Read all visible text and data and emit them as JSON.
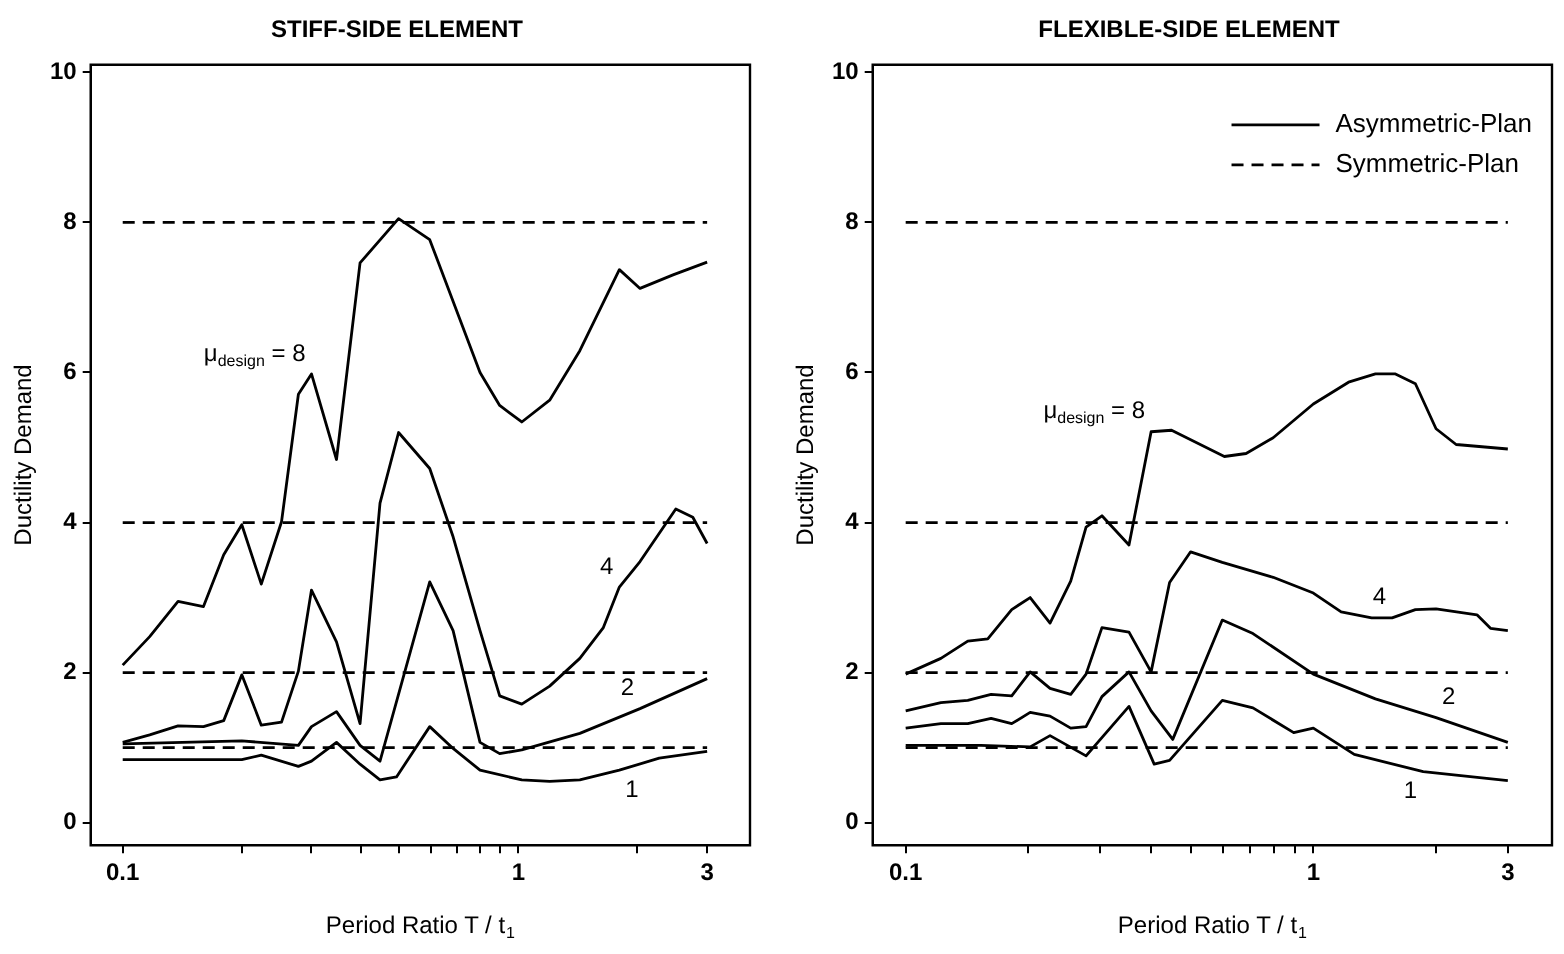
{
  "chart_data": [
    {
      "type": "line",
      "title": "STIFF-SIDE ELEMENT",
      "xlabel": "Period Ratio T / t$_{1}$",
      "ylabel": "Ductility Demand",
      "log": "x",
      "grid": false,
      "marker": "none",
      "xlim": [
        0.083,
        3.85
      ],
      "ylim": [
        -0.3,
        10.1
      ],
      "xticks": [
        0.1,
        {
          "value": 0.2,
          "label": null
        },
        {
          "value": 0.3,
          "label": null
        },
        {
          "value": 0.4,
          "label": null
        },
        {
          "value": 0.5,
          "label": null
        },
        {
          "value": 0.6,
          "label": null
        },
        {
          "value": 0.7,
          "label": null
        },
        {
          "value": 0.8,
          "label": null
        },
        {
          "value": 0.9,
          "label": null
        },
        1,
        {
          "value": 2,
          "label": null
        },
        3
      ],
      "yticks": [
        0,
        2,
        4,
        6,
        8,
        10
      ],
      "annotations": [
        {
          "text": "μ$_{design}$ = 8",
          "x": 0.3,
          "y": 5.98
        },
        {
          "text": "4",
          "x": 1.8,
          "y": 3.14
        },
        {
          "text": "2",
          "x": 2.03,
          "y": 1.52
        },
        {
          "text": "1",
          "x": 1.8,
          "y": 0.7
        }
      ],
      "series": [
        {
          "type": "line",
          "color": "#000000",
          "line_style": "solid",
          "x": [
            0.1,
            0.117,
            0.138,
            0.16,
            0.18,
            0.2,
            0.224,
            0.252,
            0.278,
            0.3,
            0.347,
            0.398,
            0.498,
            0.597,
            0.8,
            0.897,
            1.02,
            1.2,
            1.43,
            1.8,
            2.03,
            2.46,
            3.0
          ],
          "values": [
            2.1,
            2.48,
            2.95,
            2.88,
            3.57,
            3.97,
            3.18,
            4.01,
            5.71,
            5.98,
            4.84,
            7.46,
            8.05,
            7.77,
            6.0,
            5.56,
            5.34,
            5.63,
            6.29,
            7.37,
            7.12,
            7.3,
            7.47
          ]
        },
        {
          "type": "line",
          "color": "#000000",
          "line_style": "solid",
          "x": [
            0.1,
            0.117,
            0.138,
            0.16,
            0.18,
            0.2,
            0.224,
            0.252,
            0.278,
            0.3,
            0.347,
            0.398,
            0.447,
            0.498,
            0.597,
            0.684,
            0.8,
            0.897,
            1.02,
            1.2,
            1.43,
            1.64,
            1.8,
            2.03,
            2.5,
            2.76,
            3.0
          ],
          "values": [
            1.07,
            1.17,
            1.29,
            1.28,
            1.36,
            1.97,
            1.3,
            1.34,
            2.02,
            3.1,
            2.41,
            1.32,
            4.26,
            5.2,
            4.72,
            3.81,
            2.56,
            1.69,
            1.58,
            1.82,
            2.19,
            2.6,
            3.14,
            3.48,
            4.18,
            4.07,
            3.72
          ]
        },
        {
          "type": "line",
          "color": "#000000",
          "line_style": "solid",
          "x": [
            0.1,
            0.2,
            0.278,
            0.3,
            0.347,
            0.398,
            0.447,
            0.597,
            0.684,
            0.8,
            0.897,
            1.02,
            1.43,
            2.03,
            3.0
          ],
          "values": [
            1.05,
            1.09,
            1.03,
            1.28,
            1.48,
            1.03,
            0.82,
            3.21,
            2.56,
            1.07,
            0.92,
            0.97,
            1.19,
            1.52,
            1.92
          ]
        },
        {
          "type": "line",
          "color": "#000000",
          "line_style": "solid",
          "x": [
            0.1,
            0.2,
            0.224,
            0.278,
            0.3,
            0.347,
            0.398,
            0.447,
            0.492,
            0.597,
            0.684,
            0.8,
            1.02,
            1.2,
            1.43,
            1.8,
            2.27,
            3.0
          ],
          "values": [
            0.84,
            0.84,
            0.9,
            0.75,
            0.82,
            1.07,
            0.78,
            0.57,
            0.61,
            1.28,
            0.99,
            0.7,
            0.57,
            0.55,
            0.57,
            0.7,
            0.86,
            0.95
          ]
        },
        {
          "type": "line",
          "color": "#000000",
          "line_style": "dashed",
          "x": [
            0.1,
            3.0
          ],
          "values": [
            8,
            8
          ]
        },
        {
          "type": "line",
          "color": "#000000",
          "line_style": "dashed",
          "x": [
            0.1,
            3.0
          ],
          "values": [
            4,
            4
          ]
        },
        {
          "type": "line",
          "color": "#000000",
          "line_style": "dashed",
          "x": [
            0.1,
            3.0
          ],
          "values": [
            2,
            2
          ]
        },
        {
          "type": "line",
          "color": "#000000",
          "line_style": "dashed",
          "x": [
            0.1,
            3.0
          ],
          "values": [
            1,
            1
          ]
        }
      ]
    },
    {
      "type": "line",
      "title": "FLEXIBLE-SIDE ELEMENT",
      "xlabel": "Period Ratio T / t$_{1}$",
      "ylabel": "Ductility Demand",
      "log": "x",
      "grid": false,
      "marker": "none",
      "legend": "top right",
      "xlim": [
        0.083,
        3.85
      ],
      "ylim": [
        -0.3,
        10.1
      ],
      "xticks": [
        0.1,
        {
          "value": 0.2,
          "label": null
        },
        {
          "value": 0.3,
          "label": null
        },
        {
          "value": 0.4,
          "label": null
        },
        {
          "value": 0.5,
          "label": null
        },
        {
          "value": 0.6,
          "label": null
        },
        {
          "value": 0.7,
          "label": null
        },
        {
          "value": 0.8,
          "label": null
        },
        {
          "value": 0.9,
          "label": null
        },
        1,
        {
          "value": 2,
          "label": null
        },
        3
      ],
      "yticks": [
        0,
        2,
        4,
        6,
        8,
        10
      ],
      "annotations": [
        {
          "text": "μ$_{design}$ = 8",
          "x": 0.4,
          "y": 5.21
        },
        {
          "text": "4",
          "x": 1.56,
          "y": 2.73
        },
        {
          "text": "2",
          "x": 2.0,
          "y": 1.4
        },
        {
          "text": "1",
          "x": 1.86,
          "y": 0.68
        }
      ],
      "series": [
        {
          "type": "line",
          "name": "Asymmetric-Plan",
          "color": "#000000",
          "line_style": "solid",
          "x": [
            0.1,
            0.122,
            0.142,
            0.159,
            0.182,
            0.202,
            0.226,
            0.254,
            0.277,
            0.303,
            0.353,
            0.4,
            0.449,
            0.605,
            0.684,
            0.797,
            1.0,
            1.22,
            1.42,
            1.59,
            1.78,
            2.0,
            2.24,
            3.0
          ],
          "values": [
            1.98,
            2.19,
            2.42,
            2.45,
            2.84,
            3.0,
            2.66,
            3.22,
            3.94,
            4.09,
            3.7,
            5.21,
            5.23,
            4.88,
            4.92,
            5.13,
            5.58,
            5.87,
            5.98,
            5.98,
            5.85,
            5.25,
            5.04,
            4.98
          ]
        },
        {
          "type": "line",
          "color": "#000000",
          "line_style": "solid",
          "x": [
            0.1,
            0.122,
            0.142,
            0.162,
            0.182,
            0.202,
            0.226,
            0.254,
            0.277,
            0.303,
            0.353,
            0.4,
            0.444,
            0.5,
            0.598,
            0.797,
            1.0,
            1.17,
            1.39,
            1.56,
            1.78,
            2.0,
            2.52,
            2.72,
            3.0
          ],
          "values": [
            1.49,
            1.6,
            1.63,
            1.71,
            1.69,
            2.01,
            1.79,
            1.71,
            1.98,
            2.6,
            2.54,
            2.01,
            3.2,
            3.61,
            3.47,
            3.27,
            3.06,
            2.81,
            2.73,
            2.73,
            2.84,
            2.85,
            2.77,
            2.59,
            2.56
          ]
        },
        {
          "type": "line",
          "color": "#000000",
          "line_style": "solid",
          "x": [
            0.1,
            0.122,
            0.142,
            0.162,
            0.182,
            0.202,
            0.226,
            0.254,
            0.277,
            0.303,
            0.353,
            0.4,
            0.452,
            0.598,
            0.711,
            1.0,
            1.42,
            2.0,
            3.0
          ],
          "values": [
            1.26,
            1.32,
            1.32,
            1.39,
            1.32,
            1.47,
            1.42,
            1.26,
            1.28,
            1.68,
            2.01,
            1.49,
            1.11,
            2.7,
            2.52,
            1.98,
            1.65,
            1.4,
            1.07
          ]
        },
        {
          "type": "line",
          "color": "#000000",
          "line_style": "solid",
          "x": [
            0.1,
            0.153,
            0.202,
            0.226,
            0.277,
            0.353,
            0.407,
            0.444,
            0.598,
            0.711,
            0.895,
            1.0,
            1.26,
            1.86,
            3.0
          ],
          "values": [
            1.03,
            1.03,
            1.01,
            1.16,
            0.89,
            1.55,
            0.78,
            0.83,
            1.63,
            1.53,
            1.2,
            1.26,
            0.91,
            0.68,
            0.56
          ]
        },
        {
          "type": "line",
          "name": "Symmetric-Plan",
          "color": "#000000",
          "line_style": "dashed",
          "x": [
            0.1,
            3.0
          ],
          "values": [
            8,
            8
          ]
        },
        {
          "type": "line",
          "color": "#000000",
          "line_style": "dashed",
          "x": [
            0.1,
            3.0
          ],
          "values": [
            4,
            4
          ]
        },
        {
          "type": "line",
          "color": "#000000",
          "line_style": "dashed",
          "x": [
            0.1,
            3.0
          ],
          "values": [
            2,
            2
          ]
        },
        {
          "type": "line",
          "color": "#000000",
          "line_style": "dashed",
          "x": [
            0.1,
            3.0
          ],
          "values": [
            1,
            1
          ]
        }
      ]
    }
  ]
}
